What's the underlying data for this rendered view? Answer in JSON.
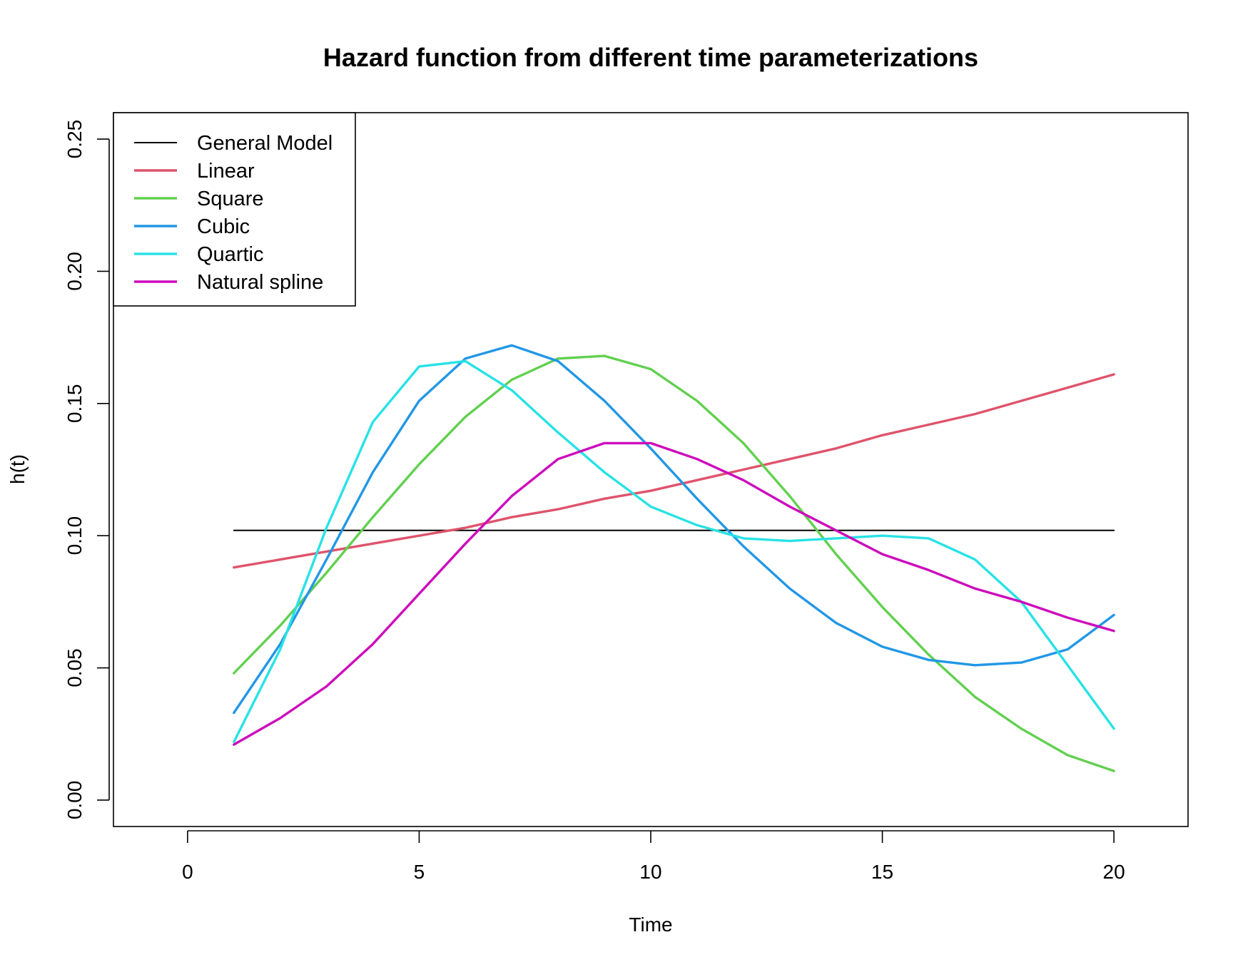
{
  "chart_data": {
    "type": "line",
    "title": "Hazard function from different time parameterizations",
    "xlabel": "Time",
    "ylabel": "h(t)",
    "xlim": [
      -1.6,
      21.6
    ],
    "ylim": [
      -0.01,
      0.26
    ],
    "xticks": [
      0,
      5,
      10,
      15,
      20
    ],
    "yticks": [
      0.0,
      0.05,
      0.1,
      0.15,
      0.2,
      0.25
    ],
    "xtick_labels": [
      "0",
      "5",
      "10",
      "15",
      "20"
    ],
    "ytick_labels": [
      "0.00",
      "0.05",
      "0.10",
      "0.15",
      "0.20",
      "0.25"
    ],
    "grid": false,
    "legend_position": "top-left",
    "x": [
      1,
      2,
      3,
      4,
      5,
      6,
      7,
      8,
      9,
      10,
      11,
      12,
      13,
      14,
      15,
      16,
      17,
      18,
      19,
      20
    ],
    "series": [
      {
        "name": "General Model",
        "color": "#000000",
        "values": [
          0.102,
          0.102,
          0.102,
          0.102,
          0.102,
          0.102,
          0.102,
          0.102,
          0.102,
          0.102,
          0.102,
          0.102,
          0.102,
          0.102,
          0.102,
          0.102,
          0.102,
          0.102,
          0.102,
          0.102
        ]
      },
      {
        "name": "Linear",
        "color": "#DF536B",
        "values": [
          0.088,
          0.091,
          0.094,
          0.097,
          0.1,
          0.103,
          0.107,
          0.11,
          0.114,
          0.117,
          0.121,
          0.125,
          0.129,
          0.133,
          0.138,
          0.142,
          0.146,
          0.151,
          0.156,
          0.161
        ]
      },
      {
        "name": "Square",
        "color": "#61D04F",
        "values": [
          0.048,
          0.066,
          0.086,
          0.107,
          0.127,
          0.145,
          0.159,
          0.167,
          0.168,
          0.163,
          0.151,
          0.135,
          0.115,
          0.093,
          0.073,
          0.055,
          0.039,
          0.027,
          0.017,
          0.011
        ]
      },
      {
        "name": "Cubic",
        "color": "#2297E6",
        "values": [
          0.033,
          0.059,
          0.091,
          0.124,
          0.151,
          0.167,
          0.172,
          0.166,
          0.151,
          0.133,
          0.114,
          0.096,
          0.08,
          0.067,
          0.058,
          0.053,
          0.051,
          0.052,
          0.057,
          0.07
        ]
      },
      {
        "name": "Quartic",
        "color": "#28E2E5",
        "values": [
          0.022,
          0.057,
          0.103,
          0.143,
          0.164,
          0.166,
          0.155,
          0.139,
          0.124,
          0.111,
          0.104,
          0.099,
          0.098,
          0.099,
          0.1,
          0.099,
          0.091,
          0.075,
          0.051,
          0.027
        ]
      },
      {
        "name": "Natural spline",
        "color": "#CD0BBC",
        "values": [
          0.021,
          0.031,
          0.043,
          0.059,
          0.078,
          0.097,
          0.115,
          0.129,
          0.135,
          0.135,
          0.129,
          0.121,
          0.111,
          0.102,
          0.093,
          0.087,
          0.08,
          0.075,
          0.069,
          0.064
        ]
      }
    ]
  }
}
